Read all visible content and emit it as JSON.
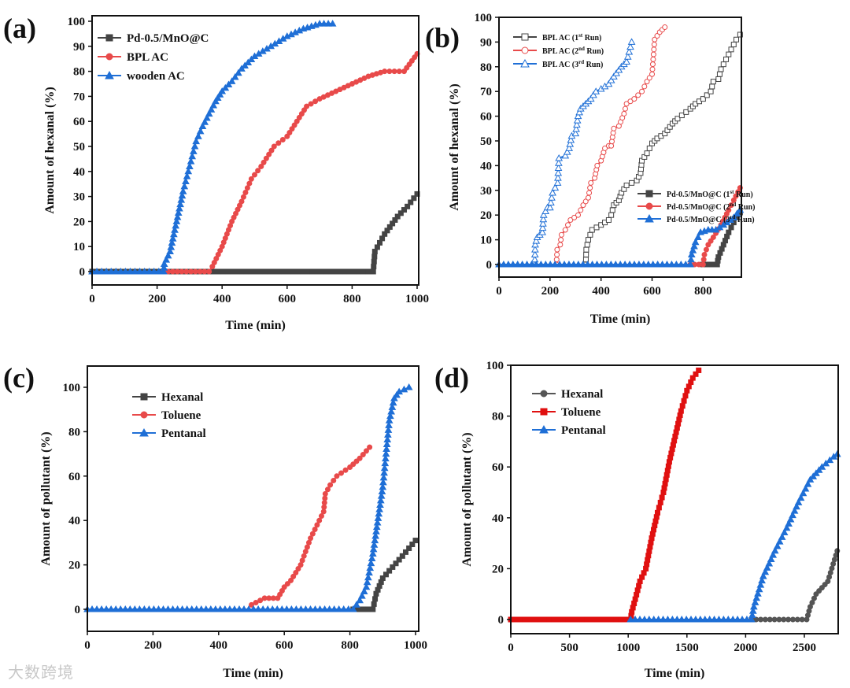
{
  "watermark": "大数跨境",
  "chart_data": [
    {
      "panel": "(a)",
      "type": "line",
      "xlabel": "Time (min)",
      "ylabel": "Amount of hexanal (%)",
      "xlim": [
        0,
        1000
      ],
      "ylim": [
        -5,
        100
      ],
      "xticks": [
        0,
        200,
        400,
        600,
        800,
        1000
      ],
      "yticks": [
        0,
        10,
        20,
        30,
        40,
        50,
        60,
        70,
        80,
        90,
        100
      ],
      "legend_position": "top-left",
      "series": [
        {
          "name": "Pd-0.5/MnO@C",
          "color": "#444444",
          "marker": "square",
          "filled": true,
          "points": [
            [
              0,
              0
            ],
            [
              865,
              0
            ],
            [
              870,
              8
            ],
            [
              900,
              15
            ],
            [
              940,
              22
            ],
            [
              970,
              26
            ],
            [
              1000,
              31
            ]
          ]
        },
        {
          "name": "BPL AC",
          "color": "#e84a4a",
          "marker": "circle",
          "filled": true,
          "points": [
            [
              220,
              0
            ],
            [
              360,
              0
            ],
            [
              370,
              2
            ],
            [
              400,
              10
            ],
            [
              430,
              20
            ],
            [
              460,
              28
            ],
            [
              490,
              37
            ],
            [
              520,
              42
            ],
            [
              560,
              50
            ],
            [
              600,
              54
            ],
            [
              630,
              60
            ],
            [
              660,
              66
            ],
            [
              700,
              69
            ],
            [
              750,
              72
            ],
            [
              800,
              75
            ],
            [
              850,
              78
            ],
            [
              900,
              80
            ],
            [
              960,
              80
            ],
            [
              1000,
              87
            ]
          ]
        },
        {
          "name": "wooden AC",
          "color": "#1f6fd6",
          "marker": "triangle",
          "filled": true,
          "points": [
            [
              0,
              0
            ],
            [
              220,
              0
            ],
            [
              222,
              3
            ],
            [
              240,
              8
            ],
            [
              260,
              20
            ],
            [
              280,
              32
            ],
            [
              300,
              42
            ],
            [
              320,
              52
            ],
            [
              340,
              58
            ],
            [
              360,
              63
            ],
            [
              380,
              68
            ],
            [
              400,
              72
            ],
            [
              430,
              76
            ],
            [
              460,
              81
            ],
            [
              500,
              86
            ],
            [
              550,
              90
            ],
            [
              600,
              94
            ],
            [
              650,
              97
            ],
            [
              700,
              99
            ],
            [
              740,
              99
            ]
          ]
        }
      ]
    },
    {
      "panel": "(b)",
      "type": "line",
      "xlabel": "Time (min)",
      "ylabel": "Amount of hexanal (%)",
      "xlim": [
        0,
        950
      ],
      "ylim": [
        -5,
        100
      ],
      "xticks": [
        0,
        200,
        400,
        600,
        800
      ],
      "yticks": [
        0,
        10,
        20,
        30,
        40,
        50,
        60,
        70,
        80,
        90,
        100
      ],
      "legend_position": "top-left and center-right",
      "series": [
        {
          "name": "BPL AC (1",
          "sup": "st",
          "tail": " Run)",
          "color": "#444444",
          "marker": "square",
          "filled": false,
          "legend": 0,
          "points": [
            [
              340,
              0
            ],
            [
              342,
              6
            ],
            [
              350,
              10
            ],
            [
              365,
              14
            ],
            [
              400,
              16
            ],
            [
              430,
              18
            ],
            [
              440,
              20
            ],
            [
              450,
              24
            ],
            [
              470,
              26
            ],
            [
              480,
              29
            ],
            [
              500,
              32
            ],
            [
              540,
              34
            ],
            [
              555,
              37
            ],
            [
              560,
              42
            ],
            [
              580,
              45
            ],
            [
              600,
              49
            ],
            [
              620,
              51
            ],
            [
              650,
              53
            ],
            [
              680,
              57
            ],
            [
              700,
              59
            ],
            [
              750,
              63
            ],
            [
              770,
              65
            ],
            [
              800,
              67
            ],
            [
              830,
              70
            ],
            [
              840,
              74
            ],
            [
              860,
              75
            ],
            [
              870,
              79
            ],
            [
              890,
              83
            ],
            [
              910,
              87
            ],
            [
              930,
              91
            ],
            [
              945,
              93
            ]
          ]
        },
        {
          "name": "BPL AC (2",
          "sup": "nd",
          "tail": " Run)",
          "color": "#e84a4a",
          "marker": "circle",
          "filled": false,
          "legend": 0,
          "points": [
            [
              225,
              0
            ],
            [
              228,
              6
            ],
            [
              240,
              8
            ],
            [
              245,
              12
            ],
            [
              260,
              14
            ],
            [
              280,
              18
            ],
            [
              310,
              20
            ],
            [
              330,
              24
            ],
            [
              350,
              27
            ],
            [
              360,
              33
            ],
            [
              375,
              35
            ],
            [
              385,
              40
            ],
            [
              400,
              42
            ],
            [
              415,
              47
            ],
            [
              430,
              48
            ],
            [
              440,
              48
            ],
            [
              450,
              55
            ],
            [
              470,
              56
            ],
            [
              490,
              61
            ],
            [
              500,
              65
            ],
            [
              530,
              67
            ],
            [
              560,
              70
            ],
            [
              580,
              74
            ],
            [
              600,
              77
            ],
            [
              610,
              91
            ],
            [
              630,
              94
            ],
            [
              650,
              96
            ]
          ]
        },
        {
          "name": "BPL AC (3",
          "sup": "rd",
          "tail": " Run)",
          "color": "#1f6fd6",
          "marker": "triangle",
          "filled": false,
          "legend": 0,
          "points": [
            [
              140,
              0
            ],
            [
              142,
              8
            ],
            [
              150,
              11
            ],
            [
              170,
              13
            ],
            [
              175,
              20
            ],
            [
              190,
              23
            ],
            [
              200,
              23
            ],
            [
              210,
              29
            ],
            [
              230,
              33
            ],
            [
              235,
              43
            ],
            [
              260,
              44
            ],
            [
              275,
              47
            ],
            [
              285,
              52
            ],
            [
              300,
              53
            ],
            [
              310,
              60
            ],
            [
              320,
              63
            ],
            [
              340,
              65
            ],
            [
              360,
              67
            ],
            [
              380,
              70
            ],
            [
              400,
              71
            ],
            [
              430,
              73
            ],
            [
              450,
              76
            ],
            [
              480,
              80
            ],
            [
              500,
              82
            ],
            [
              510,
              86
            ],
            [
              520,
              90
            ]
          ]
        },
        {
          "name": "Pd-0.5/MnO@C (1",
          "sup": "st",
          "tail": " Run)",
          "color": "#444444",
          "marker": "square",
          "filled": true,
          "legend": 1,
          "points": [
            [
              800,
              0
            ],
            [
              855,
              0
            ],
            [
              860,
              3
            ],
            [
              880,
              8
            ],
            [
              900,
              13
            ],
            [
              920,
              17
            ],
            [
              945,
              21
            ]
          ]
        },
        {
          "name": "Pd-0.5/MnO@C (2",
          "sup": "nd",
          "tail": " Run)",
          "color": "#e84a4a",
          "marker": "circle",
          "filled": true,
          "legend": 1,
          "points": [
            [
              750,
              0
            ],
            [
              800,
              0
            ],
            [
              805,
              4
            ],
            [
              820,
              8
            ],
            [
              840,
              11
            ],
            [
              870,
              16
            ],
            [
              900,
              22
            ],
            [
              920,
              26
            ],
            [
              945,
              31
            ]
          ]
        },
        {
          "name": "Pd-0.5/MnO@C (3",
          "sup": "rd",
          "tail": " Run)",
          "color": "#1f6fd6",
          "marker": "triangle",
          "filled": true,
          "legend": 1,
          "points": [
            [
              0,
              0
            ],
            [
              750,
              0
            ],
            [
              755,
              4
            ],
            [
              770,
              9
            ],
            [
              790,
              13
            ],
            [
              820,
              14
            ],
            [
              850,
              14
            ],
            [
              880,
              16
            ],
            [
              920,
              19
            ],
            [
              945,
              22
            ]
          ]
        }
      ]
    },
    {
      "panel": "(c)",
      "type": "line",
      "xlabel": "Time (min)",
      "ylabel": "Amount of pollutant (%)",
      "xlim": [
        0,
        1000
      ],
      "ylim": [
        -5,
        110
      ],
      "xticks": [
        0,
        200,
        400,
        600,
        800,
        1000
      ],
      "yticks": [
        0,
        20,
        40,
        60,
        80,
        100
      ],
      "legend_position": "top-left",
      "series": [
        {
          "name": "Hexanal",
          "color": "#444444",
          "marker": "square",
          "filled": true,
          "points": [
            [
              810,
              0
            ],
            [
              870,
              0
            ],
            [
              880,
              7
            ],
            [
              900,
              14
            ],
            [
              930,
              19
            ],
            [
              960,
              24
            ],
            [
              1000,
              31
            ]
          ]
        },
        {
          "name": "Toluene",
          "color": "#e84a4a",
          "marker": "circle",
          "filled": true,
          "points": [
            [
              500,
              2
            ],
            [
              540,
              5
            ],
            [
              580,
              5
            ],
            [
              600,
              10
            ],
            [
              620,
              13
            ],
            [
              650,
              20
            ],
            [
              680,
              32
            ],
            [
              700,
              38
            ],
            [
              720,
              44
            ],
            [
              725,
              52
            ],
            [
              740,
              56
            ],
            [
              760,
              60
            ],
            [
              800,
              64
            ],
            [
              830,
              68
            ],
            [
              860,
              73
            ]
          ]
        },
        {
          "name": "Pentanal",
          "color": "#1f6fd6",
          "marker": "triangle",
          "filled": true,
          "points": [
            [
              0,
              0
            ],
            [
              810,
              0
            ],
            [
              830,
              4
            ],
            [
              850,
              10
            ],
            [
              870,
              25
            ],
            [
              880,
              35
            ],
            [
              900,
              55
            ],
            [
              910,
              70
            ],
            [
              920,
              85
            ],
            [
              935,
              95
            ],
            [
              950,
              98
            ],
            [
              980,
              100
            ]
          ]
        }
      ]
    },
    {
      "panel": "(d)",
      "type": "line",
      "xlabel": "Time (min)",
      "ylabel": "Amount of pollutant (%)",
      "xlim": [
        0,
        2800
      ],
      "ylim": [
        -5,
        100
      ],
      "xticks": [
        0,
        500,
        1000,
        1500,
        2000,
        2500
      ],
      "yticks": [
        0,
        20,
        40,
        60,
        80,
        100
      ],
      "legend_position": "top-left",
      "series": [
        {
          "name": "Hexanal",
          "color": "#555555",
          "marker": "circle",
          "filled": true,
          "points": [
            [
              2050,
              0
            ],
            [
              2520,
              0
            ],
            [
              2550,
              5
            ],
            [
              2600,
              10
            ],
            [
              2700,
              15
            ],
            [
              2780,
              27
            ]
          ]
        },
        {
          "name": "Toluene",
          "color": "#e01010",
          "marker": "square",
          "filled": true,
          "points": [
            [
              0,
              0
            ],
            [
              1020,
              0
            ],
            [
              1030,
              3
            ],
            [
              1060,
              8
            ],
            [
              1100,
              15
            ],
            [
              1150,
              20
            ],
            [
              1200,
              32
            ],
            [
              1250,
              42
            ],
            [
              1300,
              50
            ],
            [
              1350,
              62
            ],
            [
              1400,
              72
            ],
            [
              1450,
              82
            ],
            [
              1500,
              90
            ],
            [
              1550,
              95
            ],
            [
              1600,
              98
            ]
          ]
        },
        {
          "name": "Pentanal",
          "color": "#1f6fd6",
          "marker": "triangle",
          "filled": true,
          "points": [
            [
              1020,
              0
            ],
            [
              2050,
              0
            ],
            [
              2070,
              5
            ],
            [
              2150,
              17
            ],
            [
              2250,
              27
            ],
            [
              2350,
              36
            ],
            [
              2450,
              46
            ],
            [
              2550,
              55
            ],
            [
              2650,
              60
            ],
            [
              2750,
              64
            ],
            [
              2780,
              65
            ]
          ]
        }
      ]
    }
  ]
}
